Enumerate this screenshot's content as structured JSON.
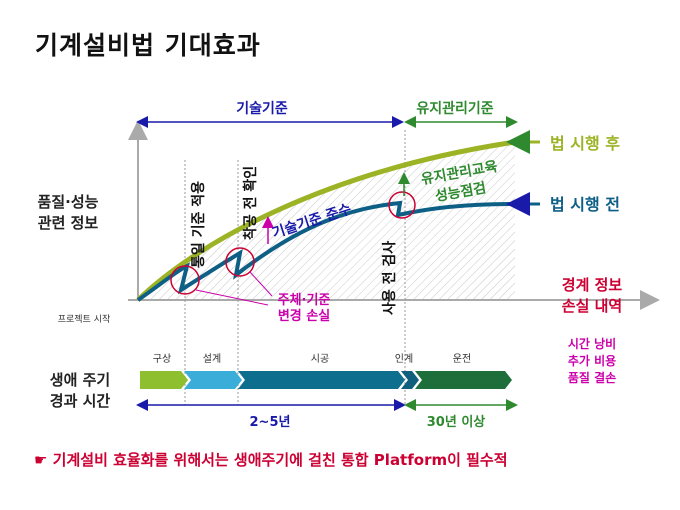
{
  "title": "기계설비법 기대효과",
  "top_ranges": {
    "left": "기술기준",
    "right": "유지관리기준"
  },
  "curves": {
    "after": "법 시행 후",
    "before": "법 시행 전"
  },
  "y_axis_label": [
    "품질·성능",
    "관련 정보"
  ],
  "project_start": "프로젝트 시작",
  "annotations": {
    "uniform_standard": "통일 기준 적용",
    "inspection": "착공 전 확인",
    "compliance": "기술기준 준수",
    "maintenance": [
      "유지관리교육",
      "성능점검"
    ],
    "pre_use": "사용 전 검사",
    "owner_change": [
      "주체·기준",
      "변경 손실"
    ]
  },
  "boundary_loss": [
    "경계 정보",
    "손실 내역"
  ],
  "loss_items": [
    "시간 낭비",
    "추가 비용",
    "품질 결손"
  ],
  "lifecycle_label": [
    "생애 주기",
    "경과 시간"
  ],
  "phases": [
    "구상",
    "설계",
    "시공",
    "인계",
    "운전"
  ],
  "durations": {
    "left": "2~5년",
    "right": "30년 이상"
  },
  "footer": "☛ 기계설비 효율화를 위해서는 생애주기에 걸친 통합 Platform이 필수적",
  "colors": {
    "after": "#9cb325",
    "before": "#0e5f86",
    "accent": "#cc0033",
    "magenta": "#cc00aa",
    "green": "#2f8a2f",
    "blue": "#1a1aaa",
    "phase_green": "#8dbf2f",
    "phase_cyan": "#3aaed8",
    "phase_teal": "#0e6e8e",
    "phase_dark": "#1d6e3a"
  }
}
